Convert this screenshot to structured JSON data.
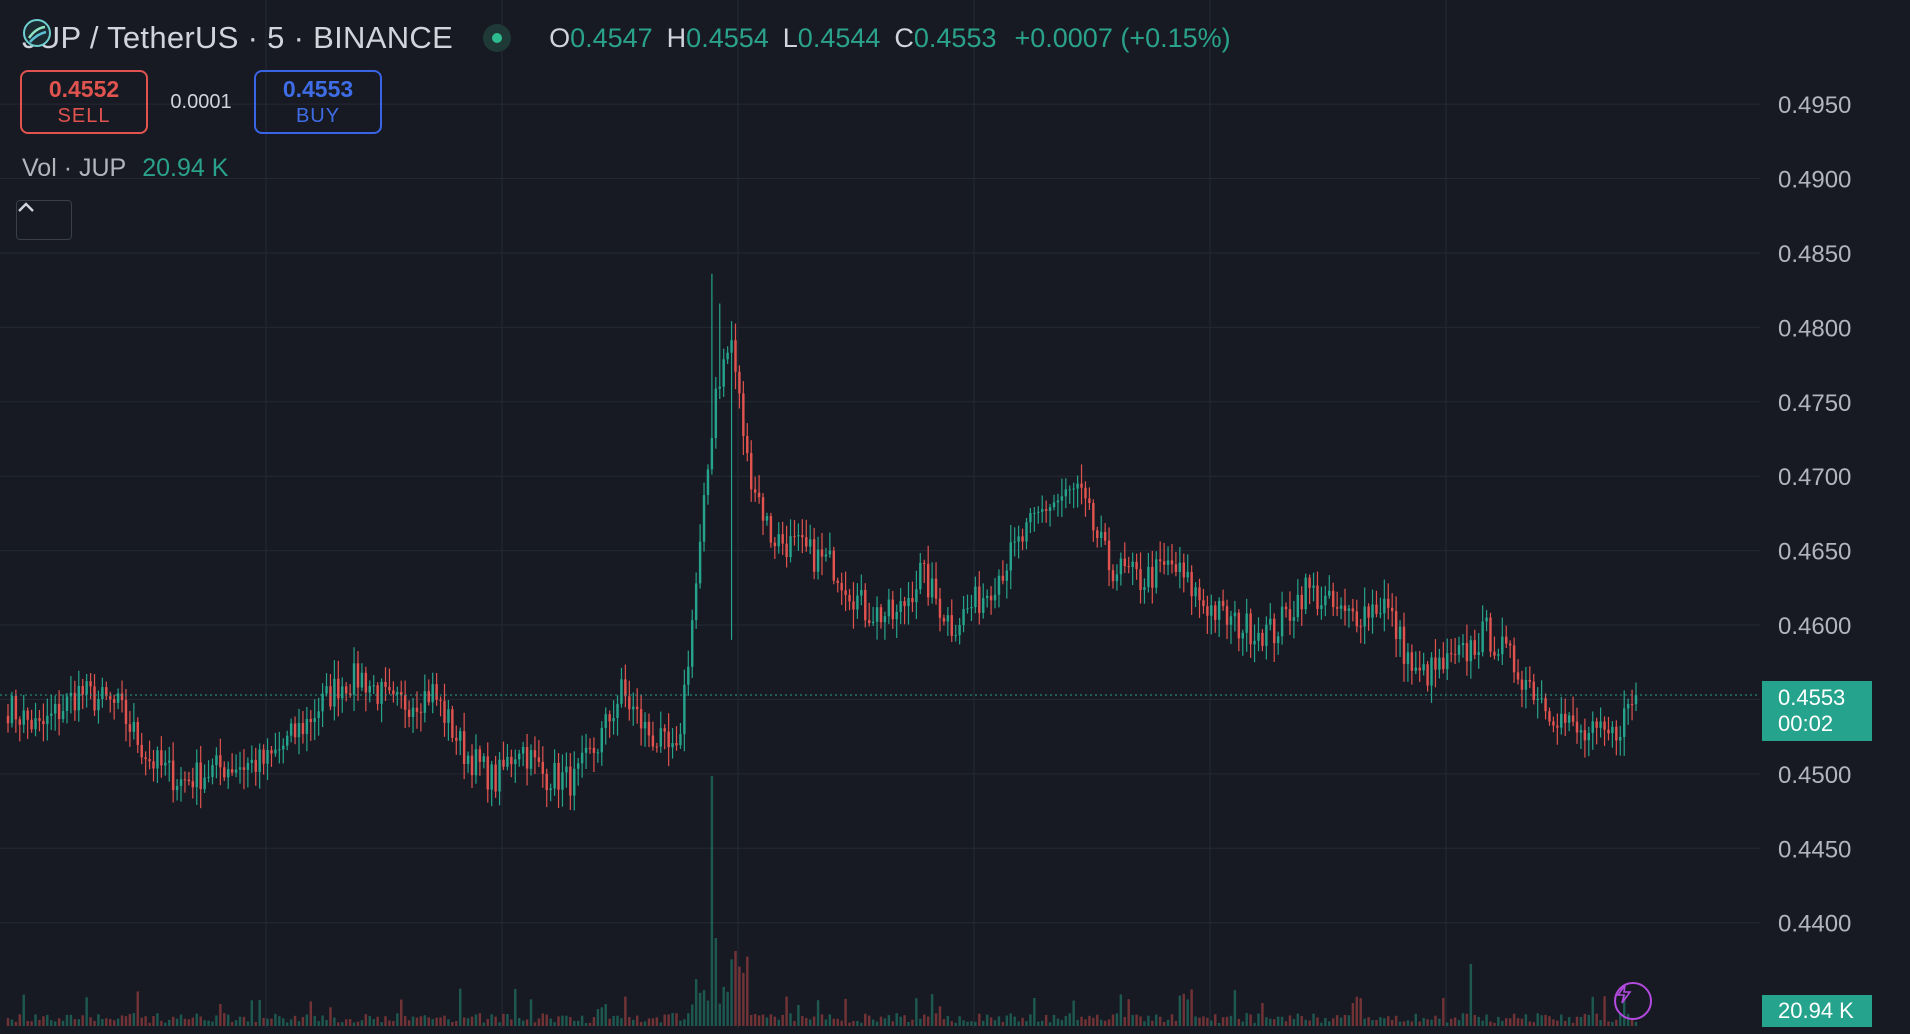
{
  "header": {
    "symbol": "JUP / TetherUS · 5 · BINANCE",
    "ohlc": {
      "o_label": "O",
      "o": "0.4547",
      "h_label": "H",
      "h": "0.4554",
      "l_label": "L",
      "l": "0.4544",
      "c_label": "C",
      "c": "0.4553",
      "change": "+0.0007 (+0.15%)"
    }
  },
  "trade": {
    "sell_price": "0.4552",
    "sell_label": "SELL",
    "spread": "0.0001",
    "buy_price": "0.4553",
    "buy_label": "BUY"
  },
  "volume_legend": {
    "label": "Vol · JUP",
    "value": "20.94 K"
  },
  "price_tag": {
    "price": "0.4553",
    "countdown": "00:02"
  },
  "volume_tag": "20.94 K",
  "icons": {
    "logo": "jup-logo-icon",
    "collapse": "chevron-up-icon",
    "flash": "lightning-icon",
    "status": "market-open-dot-icon"
  },
  "colors": {
    "background": "#171a22",
    "up": "#26a38c",
    "down": "#e0534f",
    "grid": "#252935",
    "axis_text": "#b2b5be"
  },
  "chart_data": {
    "type": "candlestick",
    "interval": "5",
    "yaxis_ticks": [
      "0.4950",
      "0.4900",
      "0.4850",
      "0.4800",
      "0.4750",
      "0.4700",
      "0.4650",
      "0.4600",
      "0.4550",
      "0.4500",
      "0.4450",
      "0.4400"
    ],
    "ylim": [
      0.4383,
      0.4983
    ],
    "last_price": 0.4553,
    "grid": true,
    "close_anchors": [
      [
        0,
        0.4545
      ],
      [
        8,
        0.453
      ],
      [
        18,
        0.4555
      ],
      [
        28,
        0.4545
      ],
      [
        36,
        0.451
      ],
      [
        44,
        0.4495
      ],
      [
        55,
        0.4505
      ],
      [
        66,
        0.4508
      ],
      [
        76,
        0.4535
      ],
      [
        84,
        0.456
      ],
      [
        90,
        0.4565
      ],
      [
        98,
        0.4545
      ],
      [
        108,
        0.4555
      ],
      [
        116,
        0.4515
      ],
      [
        124,
        0.4495
      ],
      [
        130,
        0.452
      ],
      [
        136,
        0.45
      ],
      [
        144,
        0.4495
      ],
      [
        150,
        0.452
      ],
      [
        156,
        0.4555
      ],
      [
        162,
        0.453
      ],
      [
        170,
        0.451
      ],
      [
        176,
        0.465
      ],
      [
        180,
        0.476
      ],
      [
        184,
        0.479
      ],
      [
        188,
        0.471
      ],
      [
        194,
        0.466
      ],
      [
        202,
        0.465
      ],
      [
        210,
        0.464
      ],
      [
        218,
        0.461
      ],
      [
        226,
        0.4605
      ],
      [
        232,
        0.4635
      ],
      [
        240,
        0.46
      ],
      [
        248,
        0.462
      ],
      [
        256,
        0.465
      ],
      [
        264,
        0.468
      ],
      [
        272,
        0.469
      ],
      [
        280,
        0.464
      ],
      [
        288,
        0.463
      ],
      [
        296,
        0.464
      ],
      [
        304,
        0.4615
      ],
      [
        312,
        0.46
      ],
      [
        322,
        0.4595
      ],
      [
        330,
        0.4625
      ],
      [
        340,
        0.4605
      ],
      [
        350,
        0.4615
      ],
      [
        358,
        0.4565
      ],
      [
        368,
        0.4575
      ],
      [
        376,
        0.4595
      ],
      [
        384,
        0.457
      ],
      [
        392,
        0.4545
      ],
      [
        400,
        0.4525
      ],
      [
        408,
        0.4525
      ],
      [
        414,
        0.4553
      ]
    ],
    "volume_spike": {
      "index": 179,
      "note": "largest volume bar"
    }
  }
}
